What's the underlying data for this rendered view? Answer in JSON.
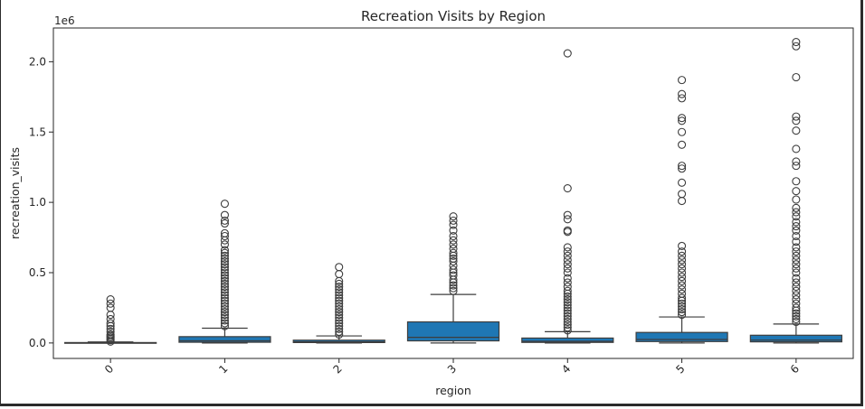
{
  "chart_data": {
    "type": "box",
    "title": "Recreation Visits by Region",
    "xlabel": "region",
    "ylabel": "recreation_visits",
    "y_offset_label": "1e6",
    "y_ticks": [
      0.0,
      0.5,
      1.0,
      1.5,
      2.0
    ],
    "y_tick_labels": [
      "0.0",
      "0.5",
      "1.0",
      "1.5",
      "2.0"
    ],
    "ylim": [
      -0.11,
      2.24
    ],
    "y_unit_multiplier": 1000000,
    "categories": [
      "0",
      "1",
      "2",
      "3",
      "4",
      "5",
      "6"
    ],
    "box_color": "#1f77b4",
    "grid": false,
    "boxes": [
      {
        "category": "0",
        "whisker_low": 0.0,
        "q1": 0.0,
        "median": 0.0,
        "q3": 0.003,
        "whisker_high": 0.007,
        "outliers": [
          0.01,
          0.02,
          0.03,
          0.04,
          0.05,
          0.06,
          0.08,
          0.1,
          0.12,
          0.14,
          0.17,
          0.2,
          0.25,
          0.28,
          0.31
        ]
      },
      {
        "category": "1",
        "whisker_low": 0.0,
        "q1": 0.005,
        "median": 0.015,
        "q3": 0.045,
        "whisker_high": 0.105,
        "outliers": [
          0.12,
          0.14,
          0.16,
          0.18,
          0.2,
          0.22,
          0.24,
          0.26,
          0.28,
          0.3,
          0.32,
          0.34,
          0.36,
          0.38,
          0.4,
          0.42,
          0.44,
          0.46,
          0.48,
          0.5,
          0.52,
          0.54,
          0.56,
          0.58,
          0.6,
          0.62,
          0.64,
          0.66,
          0.7,
          0.73,
          0.76,
          0.78,
          0.85,
          0.87,
          0.91,
          0.99
        ]
      },
      {
        "category": "2",
        "whisker_low": 0.0,
        "q1": 0.003,
        "median": 0.008,
        "q3": 0.02,
        "whisker_high": 0.05,
        "outliers": [
          0.06,
          0.08,
          0.1,
          0.12,
          0.14,
          0.16,
          0.18,
          0.2,
          0.22,
          0.24,
          0.26,
          0.28,
          0.3,
          0.32,
          0.34,
          0.36,
          0.38,
          0.4,
          0.42,
          0.44,
          0.49,
          0.54
        ]
      },
      {
        "category": "3",
        "whisker_low": 0.0,
        "q1": 0.015,
        "median": 0.04,
        "q3": 0.15,
        "whisker_high": 0.345,
        "outliers": [
          0.37,
          0.39,
          0.41,
          0.43,
          0.45,
          0.48,
          0.5,
          0.52,
          0.55,
          0.58,
          0.6,
          0.62,
          0.64,
          0.67,
          0.7,
          0.73,
          0.76,
          0.8,
          0.84,
          0.87,
          0.9
        ]
      },
      {
        "category": "4",
        "whisker_low": 0.0,
        "q1": 0.004,
        "median": 0.012,
        "q3": 0.035,
        "whisker_high": 0.08,
        "outliers": [
          0.09,
          0.11,
          0.13,
          0.15,
          0.17,
          0.19,
          0.21,
          0.23,
          0.25,
          0.27,
          0.29,
          0.31,
          0.33,
          0.35,
          0.37,
          0.4,
          0.43,
          0.46,
          0.5,
          0.53,
          0.56,
          0.59,
          0.62,
          0.65,
          0.68,
          0.79,
          0.8,
          0.88,
          0.91,
          1.1,
          2.06
        ]
      },
      {
        "category": "5",
        "whisker_low": 0.0,
        "q1": 0.01,
        "median": 0.025,
        "q3": 0.075,
        "whisker_high": 0.185,
        "outliers": [
          0.2,
          0.22,
          0.24,
          0.26,
          0.28,
          0.3,
          0.32,
          0.35,
          0.38,
          0.41,
          0.44,
          0.47,
          0.5,
          0.53,
          0.56,
          0.59,
          0.62,
          0.65,
          0.69,
          1.01,
          1.06,
          1.14,
          1.24,
          1.26,
          1.41,
          1.5,
          1.58,
          1.6,
          1.74,
          1.77,
          1.87
        ]
      },
      {
        "category": "6",
        "whisker_low": 0.0,
        "q1": 0.008,
        "median": 0.02,
        "q3": 0.055,
        "whisker_high": 0.135,
        "outliers": [
          0.15,
          0.17,
          0.19,
          0.21,
          0.23,
          0.25,
          0.28,
          0.31,
          0.34,
          0.37,
          0.4,
          0.43,
          0.46,
          0.5,
          0.53,
          0.56,
          0.59,
          0.62,
          0.65,
          0.68,
          0.72,
          0.76,
          0.8,
          0.83,
          0.86,
          0.9,
          0.93,
          0.96,
          1.02,
          1.08,
          1.15,
          1.26,
          1.29,
          1.38,
          1.51,
          1.58,
          1.61,
          1.89,
          2.11,
          2.14
        ]
      }
    ]
  }
}
